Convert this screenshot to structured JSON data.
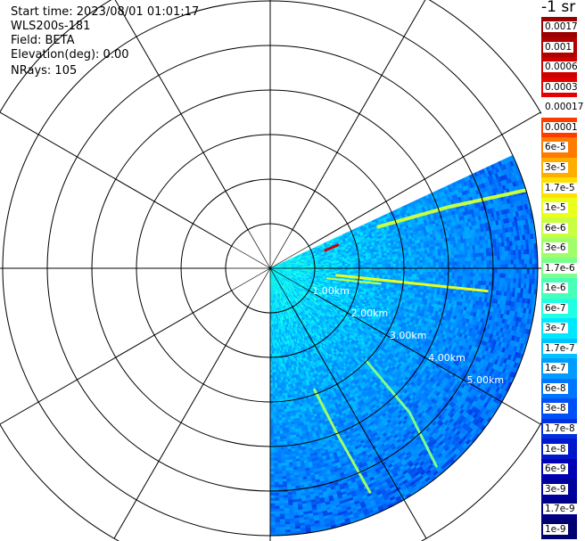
{
  "header": {
    "start_time": "Start time: 2023/08/01 01:01:17",
    "instrument": "WLS200s-181",
    "field": "Field: BETA",
    "elevation": "Elevation(deg): 0.00",
    "nrays": "NRays: 105"
  },
  "colorbar": {
    "title": "-1 sr",
    "labels": [
      "0.0017",
      "0.001",
      "0.0006",
      "0.0003",
      "0.00017",
      "0.0001",
      "6e-5",
      "3e-5",
      "1.7e-5",
      "1e-5",
      "6e-6",
      "3e-6",
      "1.7e-6",
      "1e-6",
      "6e-7",
      "3e-7",
      "1.7e-7",
      "1e-7",
      "6e-8",
      "3e-8",
      "1.7e-8",
      "1e-8",
      "6e-9",
      "3e-9",
      "1.7e-9",
      "1e-9"
    ],
    "colors": [
      "#9a0000",
      "#b00000",
      "#cc0000",
      "#e20000",
      "#ffffff",
      "#ff3c00",
      "#ff7a00",
      "#ffae00",
      "#ffe000",
      "#eaff1a",
      "#c8ff40",
      "#a0ff68",
      "#7cff8c",
      "#48ffb8",
      "#1effe4",
      "#00e8ff",
      "#00c2ff",
      "#009cff",
      "#0076ff",
      "#0050f8",
      "#0030e0",
      "#0018cc",
      "#0000b4",
      "#00009c",
      "#000086",
      "#000070"
    ]
  },
  "chart_data": {
    "type": "heatmap",
    "projection": "polar PPI scan",
    "field": "BETA",
    "units": "-1 sr",
    "elevation_deg": 0.0,
    "nrays": 105,
    "scan_azimuth_deg": [
      65,
      180
    ],
    "max_range_km": 6.0,
    "range_rings_km": [
      1,
      2,
      3,
      4,
      5,
      6,
      7
    ],
    "spoke_step_deg": 30,
    "range_labels": [
      "1.00km",
      "2.00km",
      "3.00km",
      "4.00km",
      "5.00km"
    ],
    "range_label_azimuth_deg": 120,
    "color_scale": "log",
    "color_range": [
      1e-09,
      0.0017
    ]
  }
}
